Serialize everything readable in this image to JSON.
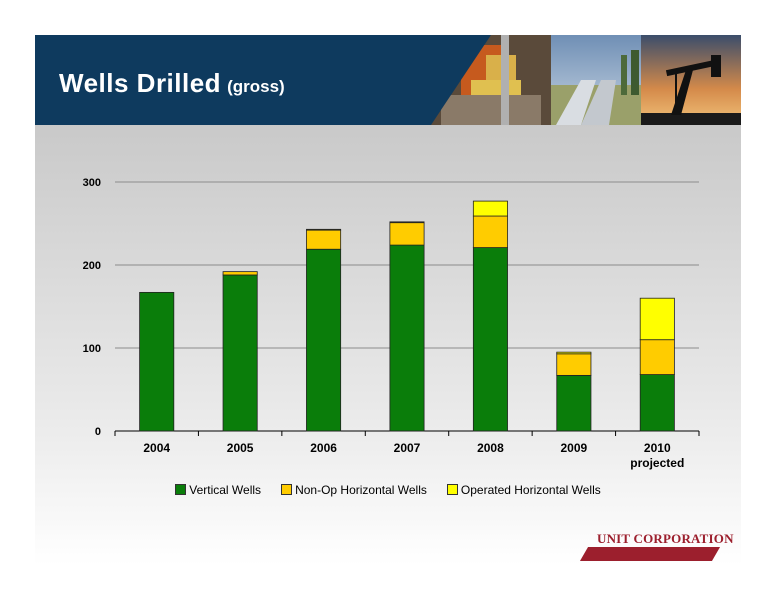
{
  "header": {
    "title": "Wells Drilled",
    "subtitle": "(gross)"
  },
  "logo": {
    "text": "UNIT CORPORATION",
    "color": "#9c1f2d"
  },
  "colors": {
    "header_bg": "#0e3a5e",
    "vertical": "#0a7d0a",
    "nonop": "#ffcc00",
    "operated": "#ffff00"
  },
  "chart_data": {
    "type": "bar",
    "stacked": true,
    "categories": [
      "2004",
      "2005",
      "2006",
      "2007",
      "2008",
      "2009",
      "2010\nprojected"
    ],
    "series": [
      {
        "name": "Vertical Wells",
        "color": "#0a7d0a",
        "values": [
          167,
          188,
          219,
          224,
          221,
          67,
          68
        ]
      },
      {
        "name": "Non-Op Horizontal Wells",
        "color": "#ffcc00",
        "values": [
          0,
          4,
          23,
          27,
          38,
          26,
          42
        ]
      },
      {
        "name": "Operated Horizontal Wells",
        "color": "#ffff00",
        "values": [
          0,
          0,
          1,
          1,
          18,
          2,
          50
        ]
      }
    ],
    "yticks": [
      "0",
      "100",
      "200",
      "300"
    ],
    "ylim": [
      0,
      300
    ],
    "grid": true,
    "legend_position": "bottom"
  }
}
